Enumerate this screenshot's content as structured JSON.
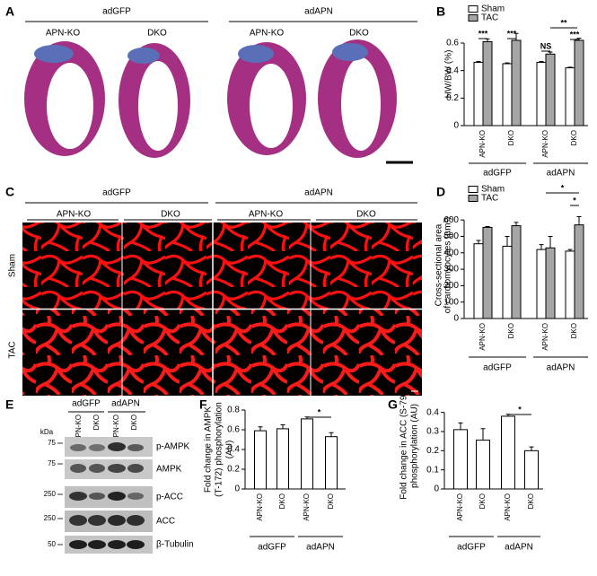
{
  "panels": {
    "A": {
      "letter": "A",
      "groups": [
        "adGFP",
        "adAPN"
      ],
      "columns": [
        "APN-KO",
        "DKO",
        "APN-KO",
        "DKO"
      ]
    },
    "C": {
      "letter": "C",
      "groups": [
        "adGFP",
        "adAPN"
      ],
      "columns": [
        "APN-KO",
        "DKO",
        "APN-KO",
        "DKO"
      ],
      "rows": [
        "Sham",
        "TAC"
      ]
    },
    "E": {
      "letter": "E",
      "groups": [
        "adGFP",
        "adAPN"
      ],
      "lanes": [
        "APN-KO",
        "DKO",
        "APN-KO",
        "DKO"
      ],
      "unit": "kDa",
      "markers": [
        "75",
        "75",
        "250",
        "250",
        "50"
      ],
      "bands": [
        "p-AMPK",
        "AMPK",
        "p-ACC",
        "ACC",
        "β-Tubulin"
      ]
    }
  },
  "chart_data": [
    {
      "type": "bar",
      "panel": "B",
      "ylabel": [
        "HW/BW (%)"
      ],
      "categories": [
        "APN-KO",
        "DKO",
        "APN-KO",
        "DKO"
      ],
      "groups": [
        "adGFP",
        "adAPN"
      ],
      "series": [
        {
          "name": "Sham",
          "color": "#ffffff",
          "values": [
            0.46,
            0.45,
            0.46,
            0.42
          ],
          "errors": [
            0.006,
            0.006,
            0.006,
            0.005
          ]
        },
        {
          "name": "TAC",
          "color": "#a6a6a6",
          "values": [
            0.61,
            0.62,
            0.52,
            0.62
          ],
          "errors": [
            0.02,
            0.05,
            0.015,
            0.015
          ]
        }
      ],
      "ylim": [
        0,
        0.75
      ],
      "yticks": [
        0,
        0.2,
        0.4,
        0.6
      ],
      "annotations": [
        "***",
        "***",
        "NS",
        "**",
        "***"
      ]
    },
    {
      "type": "bar",
      "panel": "D",
      "ylabel": [
        "Cross-sectional area",
        "of cardiomyocytes (µm²)"
      ],
      "categories": [
        "APN-KO",
        "DKO",
        "APN-KO",
        "DKO"
      ],
      "groups": [
        "adGFP",
        "adAPN"
      ],
      "series": [
        {
          "name": "Sham",
          "color": "#ffffff",
          "values": [
            455,
            440,
            420,
            410
          ],
          "errors": [
            20,
            60,
            30,
            10
          ]
        },
        {
          "name": "TAC",
          "color": "#a6a6a6",
          "values": [
            555,
            565,
            430,
            570
          ],
          "errors": [
            5,
            20,
            70,
            50
          ]
        }
      ],
      "ylim": [
        0,
        650
      ],
      "yticks": [
        0,
        100,
        200,
        300,
        400,
        500,
        600
      ],
      "annotations": [
        "*",
        "*"
      ]
    },
    {
      "type": "bar",
      "panel": "F",
      "ylabel": [
        "Fold change in AMPK",
        "(T-172) phosphorylation",
        "(AU)"
      ],
      "categories": [
        "APN-KO",
        "DKO",
        "APN-KO",
        "DKO"
      ],
      "groups": [
        "adGFP",
        "adAPN"
      ],
      "color": "#ffffff",
      "values": [
        0.59,
        0.61,
        0.71,
        0.53
      ],
      "errors": [
        0.04,
        0.04,
        0.02,
        0.04
      ],
      "ylim": [
        0,
        0.8
      ],
      "yticks": [
        0,
        0.2,
        0.4,
        0.6,
        0.8
      ],
      "annotations": [
        "*"
      ]
    },
    {
      "type": "bar",
      "panel": "G",
      "ylabel": [
        "Fold change in ACC (S-79)",
        "phosphorylation (AU)"
      ],
      "categories": [
        "APN-KO",
        "DKO",
        "APN-KO",
        "DKO"
      ],
      "groups": [
        "adGFP",
        "adAPN"
      ],
      "color": "#ffffff",
      "values": [
        0.31,
        0.255,
        0.38,
        0.2
      ],
      "errors": [
        0.035,
        0.06,
        0.01,
        0.02
      ],
      "ylim": [
        0,
        0.45
      ],
      "yticks": [
        0,
        0.1,
        0.2,
        0.3,
        0.4
      ],
      "annotations": [
        "*"
      ]
    }
  ]
}
